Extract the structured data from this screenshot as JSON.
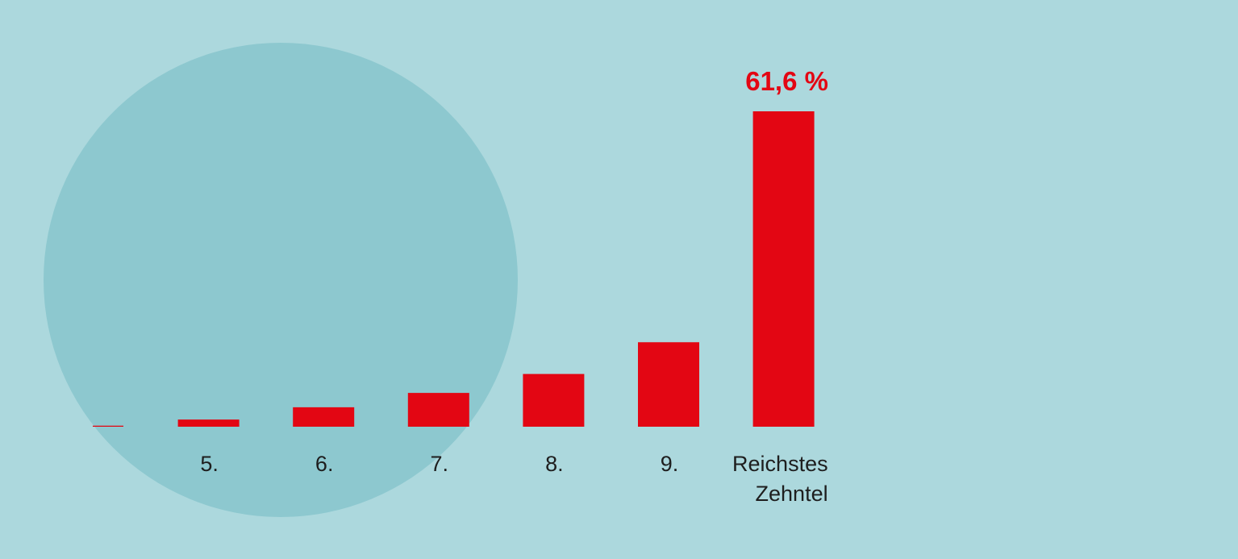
{
  "colors": {
    "background": "#acd8dd",
    "circle": "#8dc8cf",
    "bar": "#e30613",
    "text": "#1e1e1e"
  },
  "chart_data": {
    "type": "bar",
    "categories": [
      "",
      "5.",
      "6.",
      "7.",
      "8.",
      "9.",
      "Reichstes Zehntel"
    ],
    "values": [
      0.2,
      1.4,
      3.8,
      6.6,
      10.3,
      16.5,
      61.6
    ],
    "data_labels": [
      "",
      "",
      "",
      "",
      "",
      "",
      "61,6 %"
    ],
    "title": "",
    "xlabel": "",
    "ylabel": "",
    "ylim": [
      0,
      61.6
    ],
    "grid": false,
    "legend": "none"
  }
}
